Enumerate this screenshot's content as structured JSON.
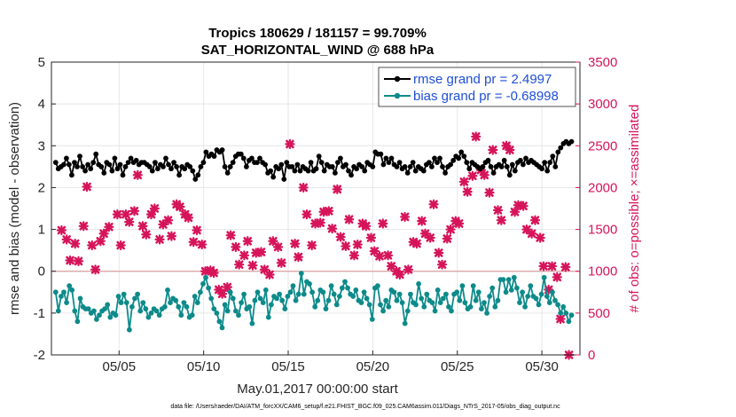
{
  "chart_data": {
    "type": "line",
    "title": [
      "Tropics 180629 / 181157 = 99.709%",
      "SAT_HORIZONTAL_WIND @ 688 hPa"
    ],
    "xlabel": "May.01,2017 00:00:00 start",
    "ylabel_left": "rmse and bias (model - observation)",
    "ylabel_right": "# of obs: o=possible; ×=assimilated",
    "footnote": "data file: /Users/raeder/DAI/ATM_forcXX/CAM6_setup/f.e21.FHIST_BGC.f09_025.CAM6assim.011/Diags_NTrS_2017-05/obs_diag_output.nc",
    "xlim": [
      1,
      32.25
    ],
    "ylim_left": [
      -2,
      5
    ],
    "ylim_right": [
      0,
      3500
    ],
    "x_ticks": [
      5,
      10,
      15,
      20,
      25,
      30
    ],
    "x_tick_labels": [
      "05/05",
      "05/10",
      "05/15",
      "05/20",
      "05/25",
      "05/30"
    ],
    "y_ticks_left": [
      "-2",
      "-1",
      "0",
      "1",
      "2",
      "3",
      "4",
      "5"
    ],
    "y_ticks_right": [
      "0",
      "500",
      "1000",
      "1500",
      "2000",
      "2500",
      "3000",
      "3500"
    ],
    "zero_line": 0,
    "series": [
      {
        "name": "rmse grand pr = 2.4997",
        "color": "#000000",
        "values": [
          2.6,
          2.45,
          2.5,
          2.55,
          2.7,
          2.55,
          2.3,
          2.6,
          2.5,
          2.75,
          2.5,
          2.4,
          2.55,
          2.45,
          2.6,
          2.8,
          2.55,
          2.5,
          2.35,
          2.6,
          2.55,
          2.4,
          2.7,
          2.45,
          2.55,
          2.3,
          2.5,
          2.6,
          2.7,
          2.6,
          2.65,
          2.55,
          2.6,
          2.6,
          2.55,
          2.5,
          2.4,
          2.6,
          2.45,
          2.55,
          2.5,
          2.7,
          2.55,
          2.45,
          2.6,
          2.5,
          2.3,
          2.5,
          2.45,
          2.55,
          2.5,
          2.4,
          2.2,
          2.3,
          2.5,
          2.6,
          2.85,
          2.75,
          2.8,
          2.75,
          2.9,
          2.85,
          2.9,
          2.5,
          2.35,
          2.5,
          2.6,
          2.75,
          2.8,
          2.8,
          2.7,
          2.5,
          2.65,
          2.7,
          2.6,
          2.6,
          2.7,
          2.6,
          2.55,
          2.35,
          2.4,
          2.25,
          2.5,
          2.45,
          2.55,
          2.2,
          2.6,
          2.5,
          2.5,
          2.4,
          2.55,
          2.4,
          2.5,
          2.45,
          2.4,
          2.6,
          2.4,
          2.45,
          2.75,
          2.6,
          2.4,
          2.55,
          2.5,
          2.5,
          2.35,
          2.6,
          2.7,
          2.5,
          2.55,
          2.4,
          2.3,
          2.5,
          2.45,
          2.55,
          2.5,
          2.4,
          2.6,
          2.55,
          2.5,
          2.85,
          2.8,
          2.8,
          2.55,
          2.7,
          2.6,
          2.7,
          2.55,
          2.5,
          2.6,
          2.45,
          2.5,
          2.35,
          2.5,
          2.6,
          2.4,
          2.5,
          2.45,
          2.4,
          2.55,
          2.6,
          2.5,
          2.7,
          2.6,
          2.7,
          2.5,
          2.35,
          2.5,
          2.55,
          2.65,
          2.75,
          2.7,
          2.85,
          2.75,
          2.6,
          2.45,
          2.6,
          2.55,
          2.5,
          2.45,
          2.5,
          2.6,
          2.65,
          2.5,
          2.35,
          2.5,
          2.55,
          2.5,
          2.65,
          2.5,
          2.3,
          2.55,
          2.4,
          2.6,
          2.65,
          2.55,
          2.7,
          2.6,
          2.65,
          2.6,
          2.55,
          2.5,
          2.45,
          2.6,
          2.4,
          2.6,
          2.75,
          2.5,
          2.85,
          2.95,
          3.05,
          3.1,
          3.05,
          3.1
        ]
      },
      {
        "name": "bias grand pr = -0.68998",
        "color": "#0d8a8a",
        "values": [
          -0.5,
          -0.95,
          -0.6,
          -0.5,
          -0.75,
          -0.35,
          -0.45,
          -0.95,
          -1.2,
          -0.65,
          -0.85,
          -0.9,
          -0.9,
          -1.0,
          -0.95,
          -1.15,
          -1.05,
          -0.95,
          -0.9,
          -0.8,
          -1.1,
          -1.0,
          -1.05,
          -0.6,
          -0.75,
          -0.55,
          -0.75,
          -1.4,
          -0.85,
          -0.65,
          -0.55,
          -0.95,
          -0.75,
          -0.9,
          -1.1,
          -1.0,
          -0.9,
          -0.95,
          -1.05,
          -0.9,
          -0.85,
          -0.45,
          -0.75,
          -0.65,
          -0.7,
          -0.85,
          -1.05,
          -0.75,
          -0.85,
          -1.1,
          -1.05,
          -0.6,
          -0.75,
          -0.5,
          -0.3,
          -0.15,
          -0.4,
          -0.65,
          -0.9,
          -1.0,
          -1.2,
          -1.35,
          -0.8,
          -0.95,
          -0.5,
          -0.65,
          -0.95,
          -1.05,
          -0.75,
          -0.55,
          -0.9,
          -0.85,
          -1.25,
          -0.7,
          -0.5,
          -0.65,
          -0.75,
          -0.45,
          -1.1,
          -0.8,
          -0.6,
          -0.65,
          -0.55,
          -0.7,
          -0.9,
          -0.6,
          -0.5,
          -0.35,
          -0.7,
          -0.55,
          -0.05,
          -0.55,
          -0.25,
          -0.3,
          -0.5,
          -0.85,
          -0.7,
          -0.45,
          -0.5,
          -0.9,
          -0.7,
          -0.35,
          -0.55,
          -0.8,
          -0.6,
          -0.4,
          -0.25,
          -0.4,
          -0.55,
          -0.6,
          -0.45,
          -0.7,
          -0.75,
          -0.5,
          -0.65,
          -0.8,
          -1.15,
          -0.4,
          -0.35,
          -0.8,
          -0.95,
          -0.7,
          -0.85,
          -0.45,
          -0.5,
          -0.7,
          -0.55,
          -0.75,
          -1.25,
          -0.95,
          -0.55,
          -0.75,
          -0.8,
          -0.3,
          -0.65,
          -0.85,
          -0.55,
          -0.7,
          -0.75,
          -0.95,
          -0.45,
          -0.75,
          -0.65,
          -0.55,
          -0.85,
          -0.95,
          -0.55,
          -0.5,
          -0.7,
          -0.35,
          -0.75,
          -0.9,
          -0.85,
          -0.35,
          -0.7,
          -0.5,
          -0.9,
          -0.75,
          -1.0,
          -0.6,
          -0.4,
          -0.85,
          -0.7,
          -0.2,
          -0.2,
          -0.5,
          -0.2,
          -0.45,
          -0.15,
          -0.4,
          -0.75,
          -0.5,
          -0.85,
          -0.6,
          -0.35,
          -0.6,
          -0.65,
          -0.8,
          -0.55,
          -0.15,
          -0.6,
          -0.75,
          -0.5,
          -0.7,
          -0.8,
          -1.0,
          -0.85,
          -1.0,
          -1.2,
          -1.05
        ]
      }
    ],
    "obs_series": {
      "name": "assimilated",
      "color": "#d6145a",
      "points": [
        [
          1.6,
          1490
        ],
        [
          1.9,
          1380
        ],
        [
          2.1,
          1130
        ],
        [
          2.4,
          1330
        ],
        [
          2.6,
          1120
        ],
        [
          2.9,
          1540
        ],
        [
          3.1,
          2010
        ],
        [
          3.4,
          1310
        ],
        [
          3.6,
          1020
        ],
        [
          3.9,
          1360
        ],
        [
          4.1,
          1450
        ],
        [
          4.4,
          1530
        ],
        [
          4.9,
          1680
        ],
        [
          5.1,
          1310
        ],
        [
          5.4,
          1680
        ],
        [
          5.6,
          1590
        ],
        [
          5.9,
          1720
        ],
        [
          6.1,
          2150
        ],
        [
          6.4,
          1540
        ],
        [
          6.6,
          1440
        ],
        [
          6.9,
          1680
        ],
        [
          7.1,
          1750
        ],
        [
          7.4,
          1380
        ],
        [
          7.6,
          1560
        ],
        [
          7.9,
          1610
        ],
        [
          8.1,
          1420
        ],
        [
          8.4,
          1800
        ],
        [
          8.6,
          1770
        ],
        [
          8.9,
          1680
        ],
        [
          9.1,
          1640
        ],
        [
          9.4,
          1350
        ],
        [
          9.6,
          1490
        ],
        [
          9.9,
          1320
        ],
        [
          10.1,
          1000
        ],
        [
          10.4,
          1010
        ],
        [
          10.6,
          980
        ],
        [
          10.9,
          780
        ],
        [
          11.1,
          730
        ],
        [
          11.4,
          810
        ],
        [
          11.6,
          1430
        ],
        [
          11.9,
          1290
        ],
        [
          12.1,
          1080
        ],
        [
          12.4,
          1190
        ],
        [
          12.6,
          1360
        ],
        [
          12.9,
          1070
        ],
        [
          13.1,
          1220
        ],
        [
          13.4,
          1230
        ],
        [
          13.6,
          1020
        ],
        [
          13.9,
          960
        ],
        [
          14.1,
          1360
        ],
        [
          14.4,
          1290
        ],
        [
          14.6,
          1100
        ],
        [
          15.1,
          2520
        ],
        [
          15.4,
          1330
        ],
        [
          15.6,
          1170
        ],
        [
          15.9,
          2000
        ],
        [
          16.1,
          1680
        ],
        [
          16.4,
          1310
        ],
        [
          16.6,
          1570
        ],
        [
          16.9,
          1580
        ],
        [
          17.1,
          1710
        ],
        [
          17.4,
          1720
        ],
        [
          17.6,
          1510
        ],
        [
          17.9,
          1980
        ],
        [
          18.1,
          1410
        ],
        [
          18.4,
          1300
        ],
        [
          18.6,
          1620
        ],
        [
          18.9,
          1190
        ],
        [
          19.1,
          1320
        ],
        [
          19.4,
          1570
        ],
        [
          19.6,
          1540
        ],
        [
          19.9,
          1400
        ],
        [
          20.1,
          1240
        ],
        [
          20.4,
          1180
        ],
        [
          20.6,
          1570
        ],
        [
          20.9,
          1190
        ],
        [
          21.1,
          1060
        ],
        [
          21.4,
          1000
        ],
        [
          21.6,
          960
        ],
        [
          21.9,
          1650
        ],
        [
          22.1,
          1020
        ],
        [
          22.4,
          1350
        ],
        [
          22.6,
          1330
        ],
        [
          22.9,
          1600
        ],
        [
          23.1,
          1450
        ],
        [
          23.4,
          1400
        ],
        [
          23.6,
          1800
        ],
        [
          23.9,
          1220
        ],
        [
          24.1,
          1080
        ],
        [
          24.4,
          1390
        ],
        [
          24.6,
          1500
        ],
        [
          24.9,
          1600
        ],
        [
          25.1,
          1570
        ],
        [
          25.4,
          2070
        ],
        [
          25.6,
          1950
        ],
        [
          25.9,
          2140
        ],
        [
          26.1,
          2610
        ],
        [
          26.4,
          2210
        ],
        [
          26.6,
          2150
        ],
        [
          26.9,
          1940
        ],
        [
          27.1,
          2450
        ],
        [
          27.4,
          1730
        ],
        [
          27.6,
          1610
        ],
        [
          27.9,
          2500
        ],
        [
          28.1,
          2450
        ],
        [
          28.4,
          1710
        ],
        [
          28.6,
          1790
        ],
        [
          28.9,
          1780
        ],
        [
          29.1,
          1500
        ],
        [
          29.4,
          1450
        ],
        [
          29.6,
          1610
        ],
        [
          29.9,
          1400
        ],
        [
          30.1,
          1060
        ],
        [
          30.4,
          780
        ],
        [
          30.6,
          1060
        ],
        [
          30.9,
          930
        ],
        [
          31.1,
          430
        ],
        [
          31.4,
          1050
        ],
        [
          31.6,
          0
        ]
      ]
    }
  }
}
